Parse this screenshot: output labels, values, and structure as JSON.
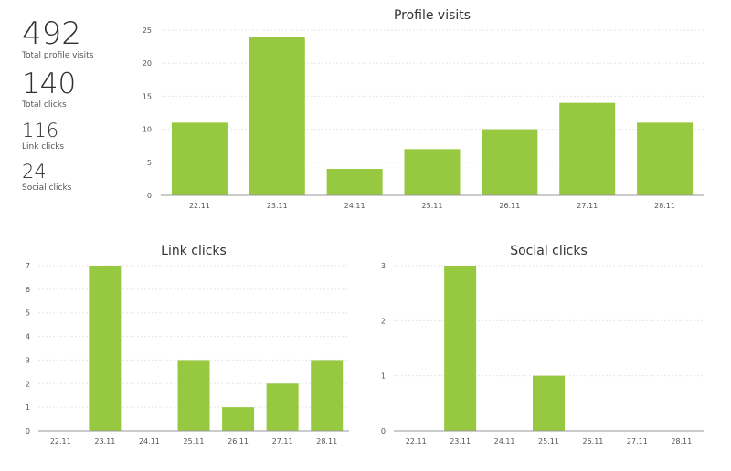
{
  "stats": [
    {
      "value": "492",
      "label": "Total profile visits"
    },
    {
      "value": "140",
      "label": "Total clicks"
    },
    {
      "value": "116",
      "label": "Link clicks"
    },
    {
      "value": "24",
      "label": "Social clicks"
    }
  ],
  "colors": {
    "bar": "#96c940",
    "grid": "#e6e6e6",
    "axis": "#999999",
    "text": "#555555"
  },
  "chart_data": [
    {
      "type": "bar",
      "title": "Profile visits",
      "categories": [
        "22.11",
        "23.11",
        "24.11",
        "25.11",
        "26.11",
        "27.11",
        "28.11"
      ],
      "values": [
        11,
        24,
        4,
        7,
        10,
        14,
        11
      ],
      "yticks": [
        0,
        5,
        10,
        15,
        20,
        25
      ],
      "ylim": [
        0,
        25
      ],
      "grid": true
    },
    {
      "type": "bar",
      "title": "Link clicks",
      "categories": [
        "22.11",
        "23.11",
        "24.11",
        "25.11",
        "26.11",
        "27.11",
        "28.11"
      ],
      "values": [
        0,
        7,
        0,
        3,
        1,
        2,
        3
      ],
      "yticks": [
        0,
        1,
        2,
        3,
        4,
        5,
        6,
        7
      ],
      "ylim": [
        0,
        7
      ],
      "grid": true
    },
    {
      "type": "bar",
      "title": "Social clicks",
      "categories": [
        "22.11",
        "23.11",
        "24.11",
        "25.11",
        "26.11",
        "27.11",
        "28.11"
      ],
      "values": [
        0,
        3,
        0,
        1,
        0,
        0,
        0
      ],
      "yticks": [
        0,
        1,
        2,
        3
      ],
      "ylim": [
        0,
        3
      ],
      "grid": true
    }
  ]
}
